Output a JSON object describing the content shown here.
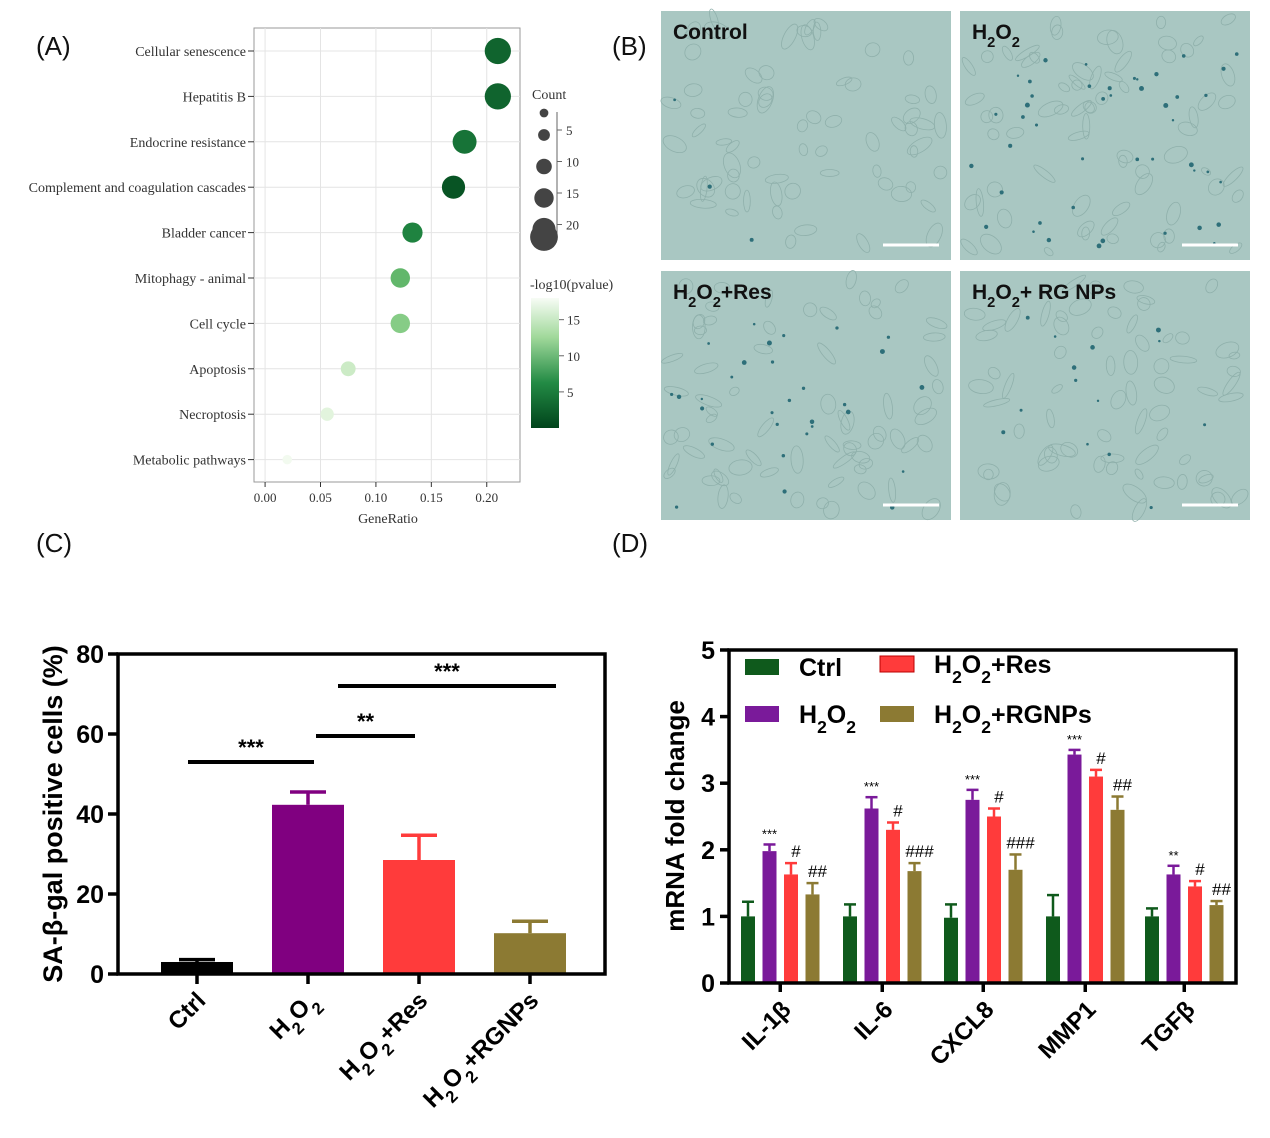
{
  "panels": {
    "A": {
      "letter": "(A)"
    },
    "B": {
      "letter": "(B)"
    },
    "C": {
      "letter": "(C)"
    },
    "D": {
      "letter": "(D)"
    }
  },
  "micrographs": [
    {
      "label": "Control",
      "name": "control"
    },
    {
      "label": "H2O2",
      "name": "h2o2"
    },
    {
      "label": "H2O2+Res",
      "name": "h2o2-res"
    },
    {
      "label": "H2O2+ RG NPs",
      "name": "h2o2-rgnps"
    }
  ],
  "micrograph_colors": {
    "background": "#a9c7c2",
    "stain": "#2e6f79",
    "cell": "#8fb0ab"
  },
  "chart_data": [
    {
      "type": "scatter",
      "panel": "A",
      "xlabel": "GeneRatio",
      "ylabel": "",
      "xlim": [
        -0.01,
        0.23
      ],
      "xticks": [
        0.0,
        0.05,
        0.1,
        0.15,
        0.2
      ],
      "xtick_labels": [
        "0.00",
        "0.05",
        "0.10",
        "0.15",
        "0.20"
      ],
      "grid": true,
      "categories": [
        "Cellular senescence",
        "Hepatitis B",
        "Endocrine resistance",
        "Complement and coagulation cascades",
        "Bladder cancer",
        "Mitophagy - animal",
        "Cell cycle",
        "Apoptosis",
        "Necroptosis",
        "Metabolic pathways"
      ],
      "gene_ratio": [
        0.21,
        0.21,
        0.18,
        0.17,
        0.133,
        0.122,
        0.122,
        0.075,
        0.056,
        0.02
      ],
      "count": [
        24,
        24,
        21,
        20,
        16,
        15,
        15,
        9,
        7,
        2
      ],
      "neg_log10_pvalue": [
        16,
        16,
        15,
        17,
        14,
        10,
        8,
        4,
        2,
        0.5
      ],
      "size_legend": {
        "title": "Count",
        "values": [
          5,
          10,
          15,
          20
        ],
        "labels": [
          "5",
          "10",
          "15",
          "20"
        ]
      },
      "color_legend": {
        "title": "-log10(pvalue)",
        "range": [
          0,
          18
        ],
        "ticks": [
          5,
          10,
          15
        ],
        "tick_labels": [
          "5",
          "10",
          "15"
        ],
        "low_color": "#f1f8ee",
        "high_color": "#00441b"
      }
    },
    {
      "type": "bar",
      "panel": "C",
      "categories": [
        "Ctrl",
        "H2O2",
        "H2O2+Res",
        "H2O2+RGNPs"
      ],
      "values": [
        3.0,
        42.3,
        28.5,
        10.2
      ],
      "errors": [
        0.6,
        3.2,
        6.2,
        3.0
      ],
      "colors": [
        "#000000",
        "#800080",
        "#ff3b3b",
        "#8c7a33"
      ],
      "ylabel": "SA-β-gal positive cells (%)",
      "xlabel": "",
      "ylim": [
        0,
        80
      ],
      "yticks": [
        0,
        20,
        40,
        60,
        80
      ],
      "ytick_labels": [
        "0",
        "20",
        "40",
        "60",
        "80"
      ],
      "significance": [
        {
          "from": 0,
          "to": 1,
          "label": "***",
          "y": 53
        },
        {
          "from": 1,
          "to": 2,
          "label": "**",
          "y": 59.5
        },
        {
          "from": 1,
          "to": 3,
          "label": "***",
          "y": 72
        }
      ]
    },
    {
      "type": "bar",
      "panel": "D",
      "categories": [
        "IL-1β",
        "IL-6",
        "CXCL8",
        "MMP1",
        "TGFβ"
      ],
      "series": [
        {
          "name": "Ctrl",
          "color": "#0f5a1c",
          "values": [
            1.0,
            1.0,
            0.98,
            1.0,
            1.0
          ],
          "errors": [
            0.22,
            0.18,
            0.2,
            0.32,
            0.12
          ],
          "marks": [
            "",
            "",
            "",
            "",
            ""
          ]
        },
        {
          "name": "H2O2",
          "color": "#7a1a9a",
          "values": [
            1.98,
            2.62,
            2.75,
            3.43,
            1.63
          ],
          "errors": [
            0.1,
            0.17,
            0.15,
            0.07,
            0.13
          ],
          "marks": [
            "***",
            "***",
            "***",
            "***",
            "**"
          ]
        },
        {
          "name": "H2O2+Res",
          "color": "#ff3b3b",
          "values": [
            1.63,
            2.3,
            2.5,
            3.1,
            1.45
          ],
          "errors": [
            0.17,
            0.11,
            0.12,
            0.1,
            0.08
          ],
          "marks": [
            "#",
            "#",
            "#",
            "#",
            "#"
          ]
        },
        {
          "name": "H2O2+RGNPs",
          "color": "#8c7a33",
          "values": [
            1.33,
            1.68,
            1.7,
            2.6,
            1.17
          ],
          "errors": [
            0.17,
            0.12,
            0.23,
            0.2,
            0.06
          ],
          "marks": [
            "##",
            "###",
            "###",
            "##",
            "##"
          ]
        }
      ],
      "ylabel": "mRNA fold change",
      "xlabel": "",
      "ylim": [
        0,
        5
      ],
      "yticks": [
        0,
        1,
        2,
        3,
        4,
        5
      ],
      "ytick_labels": [
        "0",
        "1",
        "2",
        "3",
        "4",
        "5"
      ],
      "legend": "top-left"
    }
  ]
}
